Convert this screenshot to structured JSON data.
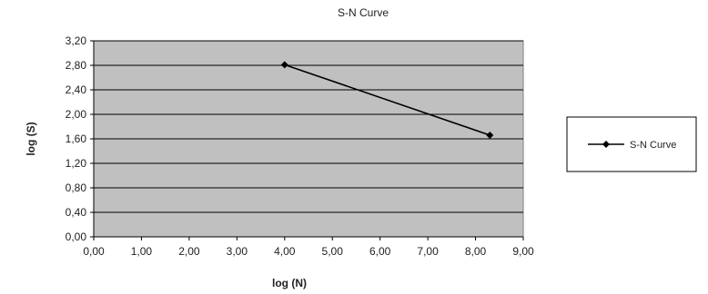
{
  "chart_data": {
    "type": "line",
    "title": "S-N Curve",
    "xlabel": "log (N)",
    "ylabel": "log (S)",
    "xlim": [
      0,
      9
    ],
    "ylim": [
      0,
      3.2
    ],
    "x_ticks": [
      "0,00",
      "1,00",
      "2,00",
      "3,00",
      "4,00",
      "5,00",
      "6,00",
      "7,00",
      "8,00",
      "9,00"
    ],
    "y_ticks": [
      "0,00",
      "0,40",
      "0,80",
      "1,20",
      "1,60",
      "2,00",
      "2,40",
      "2,80",
      "3,20"
    ],
    "grid": "horizontal",
    "legend_position": "right",
    "plot_background": "#c0c0c0",
    "series": [
      {
        "name": "S-N Curve",
        "color": "#000000",
        "marker": "diamond",
        "x": [
          4.0,
          8.3
        ],
        "y": [
          2.81,
          1.66
        ]
      }
    ]
  }
}
